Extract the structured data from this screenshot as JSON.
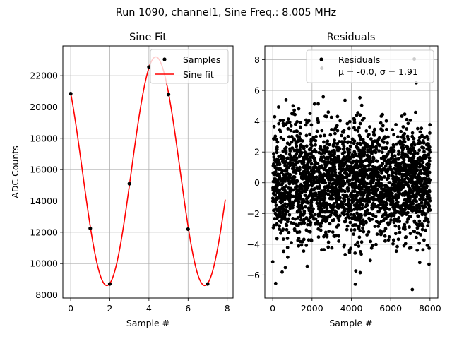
{
  "suptitle": "Run 1090, channel1, Sine Freq.: 8.005 MHz",
  "chart_data": [
    {
      "type": "line",
      "title": "Sine Fit",
      "xlabel": "Sample #",
      "ylabel": "ADC Counts",
      "xlim": [
        -0.4,
        8.3
      ],
      "ylim": [
        7800,
        23900
      ],
      "xticks": [
        0,
        2,
        4,
        6,
        8
      ],
      "yticks": [
        8000,
        10000,
        12000,
        14000,
        16000,
        18000,
        20000,
        22000
      ],
      "grid": true,
      "legend": {
        "placement": "upper right",
        "entries": [
          "Samples",
          "Sine fit"
        ]
      },
      "series": [
        {
          "name": "Samples",
          "kind": "scatter",
          "color": "#000000",
          "x": [
            0,
            1,
            2,
            3,
            4,
            5,
            6,
            7
          ],
          "y": [
            20850,
            12250,
            8700,
            15100,
            22550,
            20800,
            12200,
            8700
          ]
        },
        {
          "name": "Sine fit",
          "kind": "line",
          "color": "#ff0000",
          "offset": 15900,
          "amplitude": 7300,
          "period": 5.0,
          "peak_x": 4.35,
          "x_range": [
            0,
            7.9
          ]
        }
      ]
    },
    {
      "type": "scatter",
      "title": "Residuals",
      "xlabel": "Sample #",
      "ylabel": "",
      "xlim": [
        -400,
        8400
      ],
      "ylim": [
        -7.5,
        8.9
      ],
      "xticks": [
        0,
        2000,
        4000,
        6000,
        8000
      ],
      "yticks": [
        -6,
        -4,
        -2,
        0,
        2,
        4,
        6,
        8
      ],
      "grid": true,
      "legend": {
        "placement": "upper right",
        "entries": [
          "Residuals"
        ],
        "stats_label": "μ = -0.0, σ = 1.91"
      },
      "series": [
        {
          "name": "Residuals",
          "color": "#000000",
          "n_points": 8000,
          "mean": 0.0,
          "std": 1.91,
          "x_range": [
            0,
            8000
          ],
          "highlighted_points": [
            {
              "x": 7200,
              "y": 8.05
            },
            {
              "x": 2500,
              "y": 7.45
            },
            {
              "x": 7300,
              "y": 6.5
            },
            {
              "x": 4200,
              "y": -6.6
            },
            {
              "x": 150,
              "y": -6.55
            },
            {
              "x": 7100,
              "y": -6.95
            },
            {
              "x": 4450,
              "y": -5.85
            },
            {
              "x": 7950,
              "y": -5.3
            }
          ]
        }
      ]
    }
  ]
}
